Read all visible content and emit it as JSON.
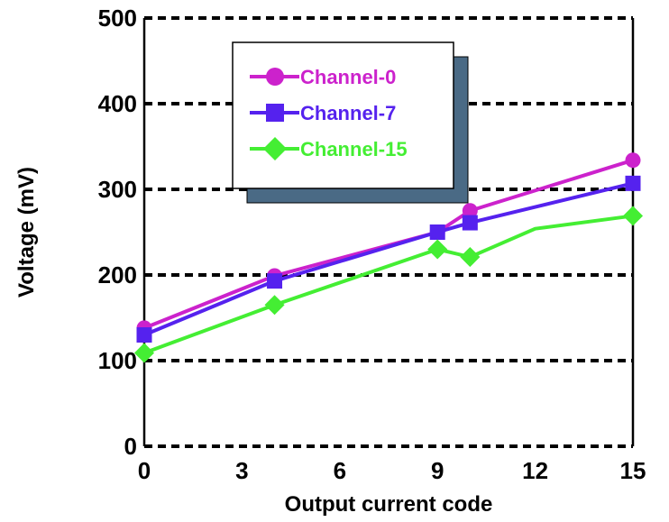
{
  "chart_data": {
    "type": "line",
    "xlabel": "Output current code",
    "ylabel": "Voltage (mV)",
    "xlim": [
      0,
      15
    ],
    "ylim": [
      0,
      500
    ],
    "x_ticks": [
      "0",
      "3",
      "6",
      "9",
      "12",
      "15"
    ],
    "y_ticks": [
      "0",
      "100",
      "200",
      "300",
      "400",
      "500"
    ],
    "grid": "horizontal dashed",
    "legend_position": "top-left inside",
    "series": [
      {
        "name": "Channel-0",
        "color": "#cc22cc",
        "marker": "circle",
        "x": [
          0,
          4,
          9,
          10,
          15
        ],
        "y": [
          138,
          199,
          250,
          275,
          334
        ]
      },
      {
        "name": "Channel-7",
        "color": "#5522ee",
        "marker": "square",
        "x": [
          0,
          4,
          9,
          10,
          15
        ],
        "y": [
          130,
          193,
          250,
          261,
          307
        ]
      },
      {
        "name": "Channel-15",
        "color": "#44ee33",
        "marker": "diamond",
        "x": [
          0,
          4,
          9,
          10,
          12,
          15
        ],
        "y": [
          109,
          165,
          230,
          221,
          254,
          269
        ],
        "marker_mask": [
          true,
          true,
          true,
          true,
          false,
          true
        ]
      }
    ]
  }
}
